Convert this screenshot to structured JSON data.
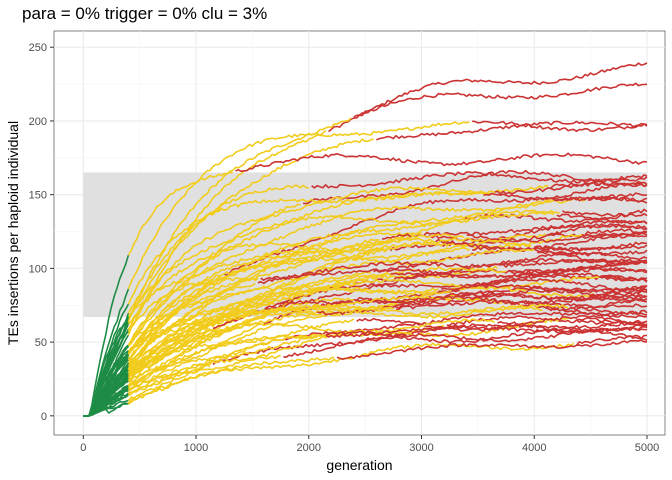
{
  "chart_data": {
    "type": "line",
    "title": "para = 0% trigger = 0% clu = 3%",
    "xlabel": "generation",
    "ylabel": "TEs insertions per haploid individual",
    "xlim": [
      -260,
      5160
    ],
    "ylim": [
      -13,
      261
    ],
    "x_ticks": [
      0,
      1000,
      2000,
      3000,
      4000,
      5000
    ],
    "y_ticks": [
      0,
      50,
      100,
      150,
      200,
      250
    ],
    "x_tick_labels": [
      "0",
      "1000",
      "2000",
      "3000",
      "4000",
      "5000"
    ],
    "y_tick_labels": [
      "0",
      "50",
      "100",
      "150",
      "200",
      "250"
    ],
    "grid": true,
    "band": {
      "x": [
        0,
        5000
      ],
      "y": [
        67,
        165
      ],
      "color": "#e0e0e0"
    },
    "phase_colors": {
      "early": "#1e8c45",
      "middle": "#f2cc1c",
      "late": "#cc3333"
    },
    "n_series": 60,
    "series_final_values": [
      239,
      223,
      199,
      197,
      174,
      165,
      162,
      159,
      157,
      155,
      152,
      149,
      146,
      143,
      140,
      137,
      134,
      131,
      128,
      126,
      124,
      122,
      120,
      118,
      116,
      114,
      112,
      110,
      108,
      106,
      104,
      102,
      100,
      98,
      97,
      95,
      93,
      91,
      89,
      88,
      86,
      84,
      82,
      81,
      79,
      77,
      76,
      74,
      72,
      70,
      68,
      66,
      65,
      63,
      61,
      59,
      57,
      55,
      53,
      51
    ],
    "series_shape": "each series rises from 0 near generation 0, grows quickly in the green early phase (to about generation 400), continues in the yellow phase, then plateaus in the red phase near its final value by generation 5000"
  }
}
